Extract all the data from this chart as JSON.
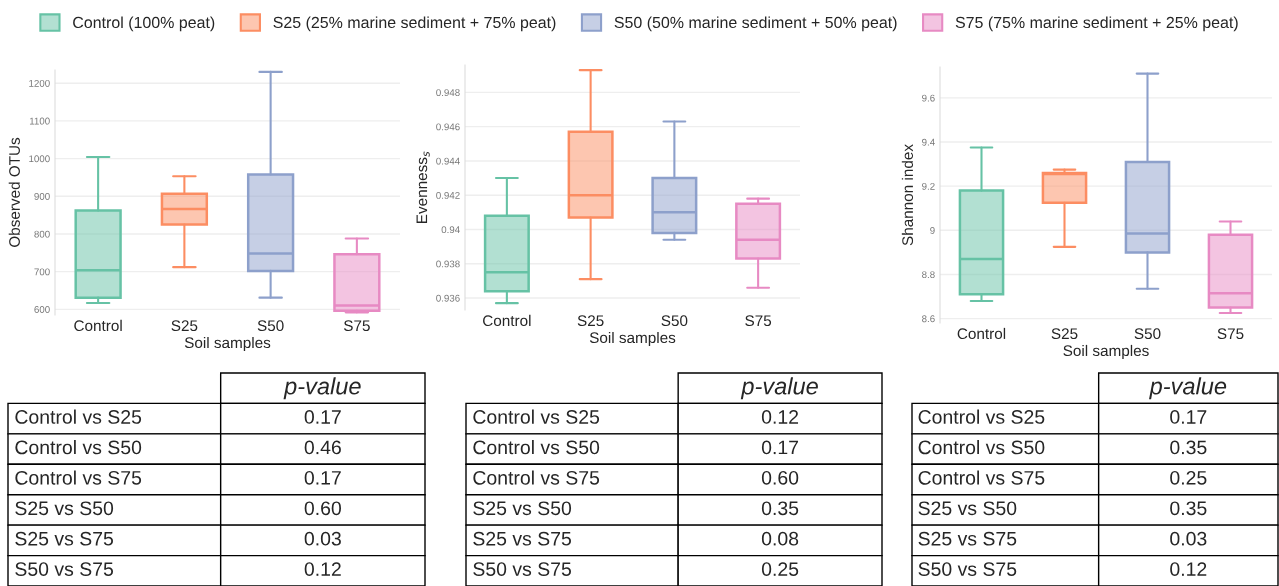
{
  "chart_data": [
    {
      "type": "box",
      "categories": [
        "Control",
        "S25",
        "S50",
        "S75"
      ],
      "xlabel": "Soil samples",
      "ylabel": "Observed OTUs",
      "ylim": [
        585,
        1235
      ],
      "yticks": [
        600,
        700,
        800,
        900,
        1000,
        1100,
        1200
      ],
      "grid": "y",
      "legend": "top",
      "series": [
        {
          "name": "Control (100% peat)",
          "color": "#66c2a5",
          "boxes": [
            {
              "low": 617,
              "q1": 631,
              "median": 704,
              "q3": 862,
              "high": 1004
            },
            null,
            null,
            null
          ]
        },
        {
          "name": "S25 (25% marine sediment + 75% peat)",
          "color": "#fc8d62",
          "boxes": [
            null,
            {
              "low": 712,
              "q1": 825,
              "median": 866,
              "q3": 907,
              "high": 953
            },
            null,
            null
          ]
        },
        {
          "name": "S50 (50% marine sediment + 50% peat)",
          "color": "#8da0cb",
          "boxes": [
            null,
            null,
            {
              "low": 631,
              "q1": 702,
              "median": 748,
              "q3": 958,
              "high": 1230
            },
            null
          ]
        },
        {
          "name": "S75 (75% marine sediment + 25% peat)",
          "color": "#e78ac3",
          "boxes": [
            null,
            null,
            null,
            {
              "low": 592,
              "q1": 596,
              "median": 610,
              "q3": 746,
              "high": 788
            }
          ]
        }
      ],
      "annotations": [
        "p-value",
        "Control vs S25",
        "0.17",
        "Control vs S50",
        "0.46",
        "Control vs S75",
        "0.17",
        "S25 vs S50",
        "0.60",
        "S25 vs S75",
        "0.03",
        "S50 vs S75",
        "0.12"
      ]
    },
    {
      "type": "box",
      "categories": [
        "Control",
        "S25",
        "S50",
        "S75"
      ],
      "xlabel": "Soil samples",
      "ylabel": "Evenness$_{s}$",
      "ylim": [
        0.9353,
        0.9496
      ],
      "yticks": [
        0.936,
        0.938,
        0.94,
        0.942,
        0.944,
        0.946,
        0.948
      ],
      "grid": "y",
      "series": [
        {
          "color": "#66c2a5",
          "boxes": [
            {
              "low": 0.9357,
              "q1": 0.9364,
              "median": 0.9375,
              "q3": 0.9408,
              "high": 0.943
            },
            null,
            null,
            null
          ]
        },
        {
          "color": "#fc8d62",
          "boxes": [
            null,
            {
              "low": 0.9371,
              "q1": 0.9407,
              "median": 0.942,
              "q3": 0.9457,
              "high": 0.9493
            },
            null,
            null
          ]
        },
        {
          "color": "#8da0cb",
          "boxes": [
            null,
            null,
            {
              "low": 0.9394,
              "q1": 0.9398,
              "median": 0.941,
              "q3": 0.943,
              "high": 0.9463
            },
            null
          ]
        },
        {
          "color": "#e78ac3",
          "boxes": [
            null,
            null,
            null,
            {
              "low": 0.9366,
              "q1": 0.9383,
              "median": 0.9394,
              "q3": 0.9415,
              "high": 0.9418
            }
          ]
        }
      ],
      "annotations": [
        "p-value",
        "Control vs S25",
        "0.12",
        "Control vs S50",
        "0.17",
        "Control vs S75",
        "0.60",
        "S25 vs S50",
        "0.35",
        "S25 vs S75",
        "0.08",
        "S50 vs S75",
        "0.25"
      ]
    },
    {
      "type": "box",
      "categories": [
        "Control",
        "S25",
        "S50",
        "S75"
      ],
      "xlabel": "Soil samples",
      "ylabel": "Shannon index",
      "ylim": [
        8.58,
        9.74
      ],
      "yticks": [
        8.6,
        8.8,
        9,
        9.2,
        9.4,
        9.6
      ],
      "grid": "y",
      "series": [
        {
          "color": "#66c2a5",
          "boxes": [
            {
              "low": 8.68,
              "q1": 8.71,
              "median": 8.87,
              "q3": 9.18,
              "high": 9.375
            },
            null,
            null,
            null
          ]
        },
        {
          "color": "#fc8d62",
          "boxes": [
            null,
            {
              "low": 8.925,
              "q1": 9.125,
              "median": 9.255,
              "q3": 9.26,
              "high": 9.275
            },
            null,
            null
          ]
        },
        {
          "color": "#8da0cb",
          "boxes": [
            null,
            null,
            {
              "low": 8.735,
              "q1": 8.9,
              "median": 8.985,
              "q3": 9.31,
              "high": 9.71
            },
            null
          ]
        },
        {
          "color": "#e78ac3",
          "boxes": [
            null,
            null,
            null,
            {
              "low": 8.625,
              "q1": 8.65,
              "median": 8.715,
              "q3": 8.98,
              "high": 9.04
            }
          ]
        }
      ],
      "annotations": [
        "p-value",
        "Control vs S25",
        "0.17",
        "Control vs S50",
        "0.35",
        "Control vs S75",
        "0.25",
        "S25 vs S50",
        "0.35",
        "S25 vs S75",
        "0.03",
        "S50 vs S75",
        "0.12"
      ]
    }
  ]
}
